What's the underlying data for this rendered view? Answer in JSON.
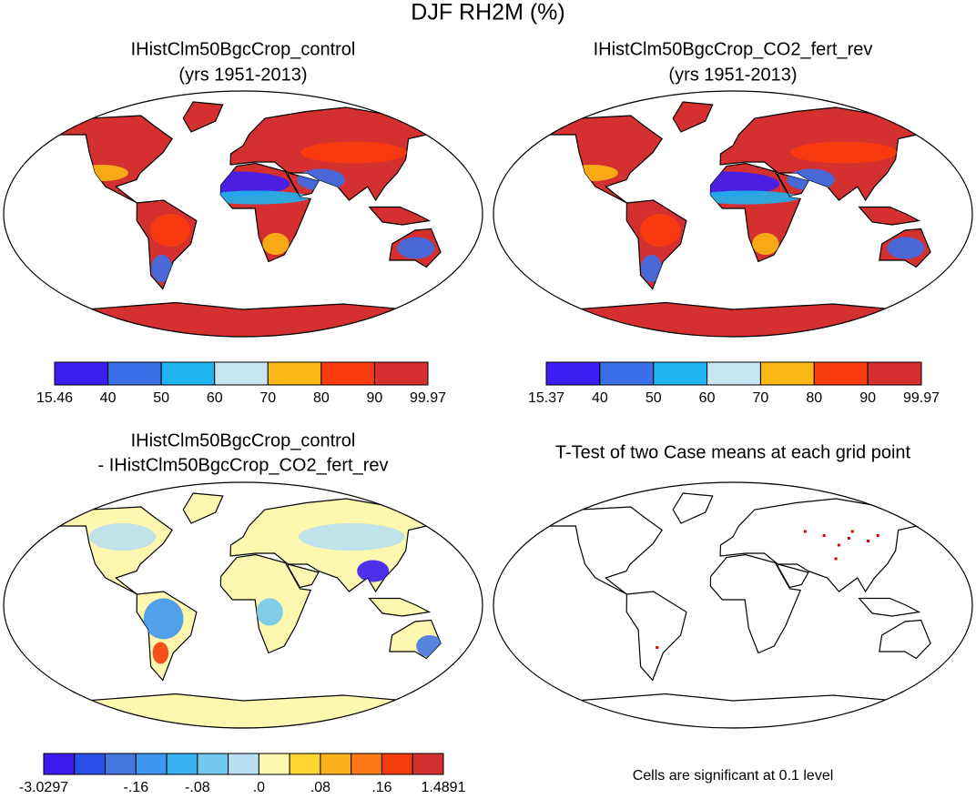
{
  "title": "DJF RH2M (%)",
  "panels": [
    {
      "title": [
        "IHistClm50BgcCrop_control",
        "(yrs 1951-2013)"
      ],
      "colorbar": {
        "colors": [
          "#3c1ef5",
          "#3b6fe8",
          "#1fb4f0",
          "#c6e6f3",
          "#fbb814",
          "#fb3c0c",
          "#d43030"
        ],
        "labels": [
          "15.46",
          "40",
          "50",
          "60",
          "70",
          "80",
          "90",
          "99.97"
        ]
      }
    },
    {
      "title": [
        "IHistClm50BgcCrop_CO2_fert_rev",
        "(yrs 1951-2013)"
      ],
      "colorbar": {
        "colors": [
          "#3c1ef5",
          "#3b6fe8",
          "#1fb4f0",
          "#c6e6f3",
          "#fbb814",
          "#fb3c0c",
          "#d43030"
        ],
        "labels": [
          "15.37",
          "40",
          "50",
          "60",
          "70",
          "80",
          "90",
          "99.97"
        ]
      }
    },
    {
      "title": [
        "IHistClm50BgcCrop_control",
        "- IHistClm50BgcCrop_CO2_fert_rev"
      ],
      "colorbar": {
        "colors": [
          "#3a1af0",
          "#2a4ee8",
          "#4677e0",
          "#3f96f0",
          "#39b4f0",
          "#72c8ee",
          "#b9e0f0",
          "#fef7b0",
          "#fdd430",
          "#fbb21a",
          "#fb7a16",
          "#f43c0e",
          "#d33030"
        ],
        "labels": [
          "-3.0297",
          null,
          null,
          "-.16",
          null,
          "-.08",
          null,
          ".0",
          null,
          ".08",
          null,
          ".16",
          null,
          "1.4891"
        ]
      }
    },
    {
      "title": [
        "T-Test of two Case means at each grid point"
      ],
      "note": "Cells are significant at 0.1 level"
    }
  ]
}
